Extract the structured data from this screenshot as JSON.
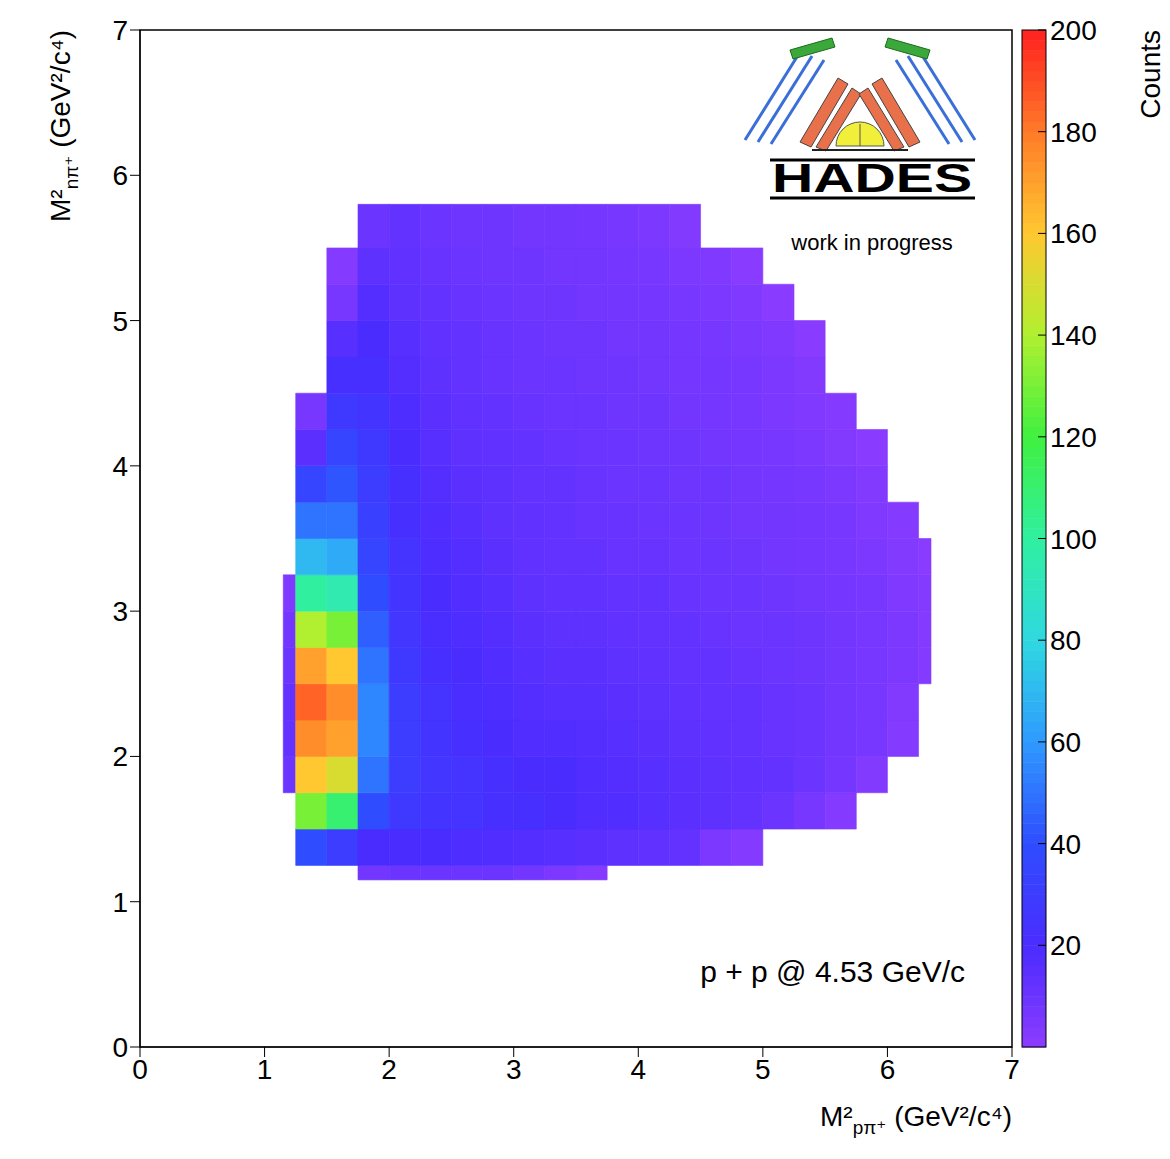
{
  "chart_data": {
    "type": "heatmap",
    "x_label": "M²pπ⁺ (GeV²/c⁴)",
    "y_label": "M²nπ⁺ (GeV²/c⁴)",
    "xlim": [
      0,
      7
    ],
    "ylim": [
      0,
      7
    ],
    "xticks": [
      0,
      1,
      2,
      3,
      4,
      5,
      6,
      7
    ],
    "yticks": [
      0,
      1,
      2,
      3,
      4,
      5,
      6,
      7
    ],
    "x_bins": [
      1.15,
      1.25,
      1.5,
      1.75,
      2.0,
      2.25,
      2.5,
      2.75,
      3.0,
      3.25,
      3.5,
      3.75,
      4.0,
      4.25,
      4.5,
      4.75,
      5.0,
      5.25,
      5.5,
      5.75,
      6.0,
      6.25,
      6.35
    ],
    "y_bins": [
      1.15,
      1.25,
      1.5,
      1.75,
      2.0,
      2.25,
      2.5,
      2.75,
      3.0,
      3.25,
      3.5,
      3.75,
      4.0,
      4.25,
      4.5,
      4.75,
      5.0,
      5.25,
      5.5,
      5.8
    ],
    "cells": [
      [
        null,
        null,
        null,
        8,
        10,
        10,
        10,
        10,
        8,
        5,
        2,
        null,
        null,
        null,
        null,
        null,
        null,
        null,
        null,
        null,
        null,
        null
      ],
      [
        null,
        40,
        30,
        20,
        20,
        20,
        19,
        18,
        17,
        16,
        15,
        14,
        13,
        12,
        5,
        2,
        null,
        null,
        null,
        null,
        null,
        null
      ],
      [
        null,
        130,
        110,
        40,
        28,
        25,
        24,
        22,
        22,
        20,
        18,
        18,
        16,
        15,
        14,
        12,
        10,
        6,
        2,
        null,
        null,
        null
      ],
      [
        10,
        160,
        150,
        50,
        30,
        26,
        24,
        22,
        20,
        20,
        18,
        17,
        16,
        15,
        14,
        13,
        12,
        10,
        7,
        3,
        null,
        null
      ],
      [
        12,
        175,
        170,
        55,
        30,
        25,
        22,
        20,
        18,
        18,
        17,
        16,
        15,
        14,
        13,
        12,
        11,
        10,
        8,
        6,
        2,
        null
      ],
      [
        12,
        185,
        175,
        55,
        30,
        24,
        21,
        19,
        17,
        16,
        16,
        15,
        14,
        13,
        12,
        12,
        11,
        10,
        8,
        6,
        3,
        null
      ],
      [
        10,
        170,
        160,
        50,
        28,
        22,
        20,
        18,
        16,
        15,
        15,
        14,
        13,
        12,
        12,
        11,
        10,
        9,
        8,
        6,
        5,
        2
      ],
      [
        8,
        140,
        130,
        45,
        26,
        21,
        19,
        17,
        15,
        14,
        14,
        13,
        12,
        12,
        11,
        10,
        10,
        9,
        8,
        6,
        5,
        2
      ],
      [
        4,
        100,
        95,
        40,
        25,
        20,
        18,
        16,
        14,
        13,
        13,
        12,
        12,
        11,
        10,
        10,
        9,
        8,
        7,
        6,
        4,
        2
      ],
      [
        null,
        70,
        65,
        35,
        24,
        19,
        17,
        15,
        13,
        12,
        12,
        11,
        11,
        10,
        10,
        9,
        8,
        7,
        6,
        5,
        3,
        1
      ],
      [
        null,
        50,
        50,
        32,
        22,
        18,
        16,
        14,
        13,
        12,
        11,
        11,
        10,
        10,
        9,
        8,
        8,
        7,
        6,
        4,
        2,
        null
      ],
      [
        null,
        35,
        42,
        30,
        22,
        17,
        15,
        14,
        12,
        12,
        11,
        10,
        10,
        9,
        9,
        8,
        7,
        6,
        5,
        3,
        null,
        null
      ],
      [
        null,
        15,
        35,
        28,
        20,
        16,
        14,
        13,
        12,
        11,
        10,
        10,
        9,
        9,
        8,
        7,
        6,
        5,
        3,
        1,
        null,
        null
      ],
      [
        null,
        6,
        28,
        25,
        19,
        15,
        13,
        12,
        11,
        10,
        10,
        9,
        9,
        8,
        7,
        6,
        5,
        4,
        2,
        null,
        null,
        null
      ],
      [
        null,
        null,
        22,
        22,
        17,
        14,
        12,
        11,
        10,
        10,
        9,
        9,
        8,
        7,
        7,
        6,
        5,
        3,
        null,
        null,
        null,
        null
      ],
      [
        null,
        null,
        16,
        20,
        16,
        13,
        12,
        11,
        10,
        9,
        9,
        8,
        8,
        7,
        6,
        5,
        4,
        1,
        null,
        null,
        null,
        null
      ],
      [
        null,
        null,
        6,
        17,
        14,
        12,
        11,
        10,
        9,
        9,
        8,
        8,
        7,
        6,
        5,
        4,
        1,
        null,
        null,
        null,
        null,
        null
      ],
      [
        null,
        null,
        2,
        14,
        13,
        11,
        10,
        9,
        9,
        8,
        8,
        7,
        6,
        5,
        4,
        1,
        null,
        null,
        null,
        null,
        null,
        null
      ],
      [
        null,
        null,
        null,
        10,
        12,
        10,
        9,
        9,
        8,
        8,
        7,
        6,
        5,
        3,
        null,
        null,
        null,
        null,
        null,
        null,
        null,
        null
      ]
    ],
    "colorbar": {
      "label": "Counts",
      "range": [
        0,
        200
      ],
      "ticks": [
        20,
        40,
        60,
        80,
        100,
        120,
        140,
        160,
        180,
        200
      ]
    },
    "annotations": [
      "p + p @ 4.53 GeV/c",
      "HADES",
      "work in progress"
    ]
  }
}
